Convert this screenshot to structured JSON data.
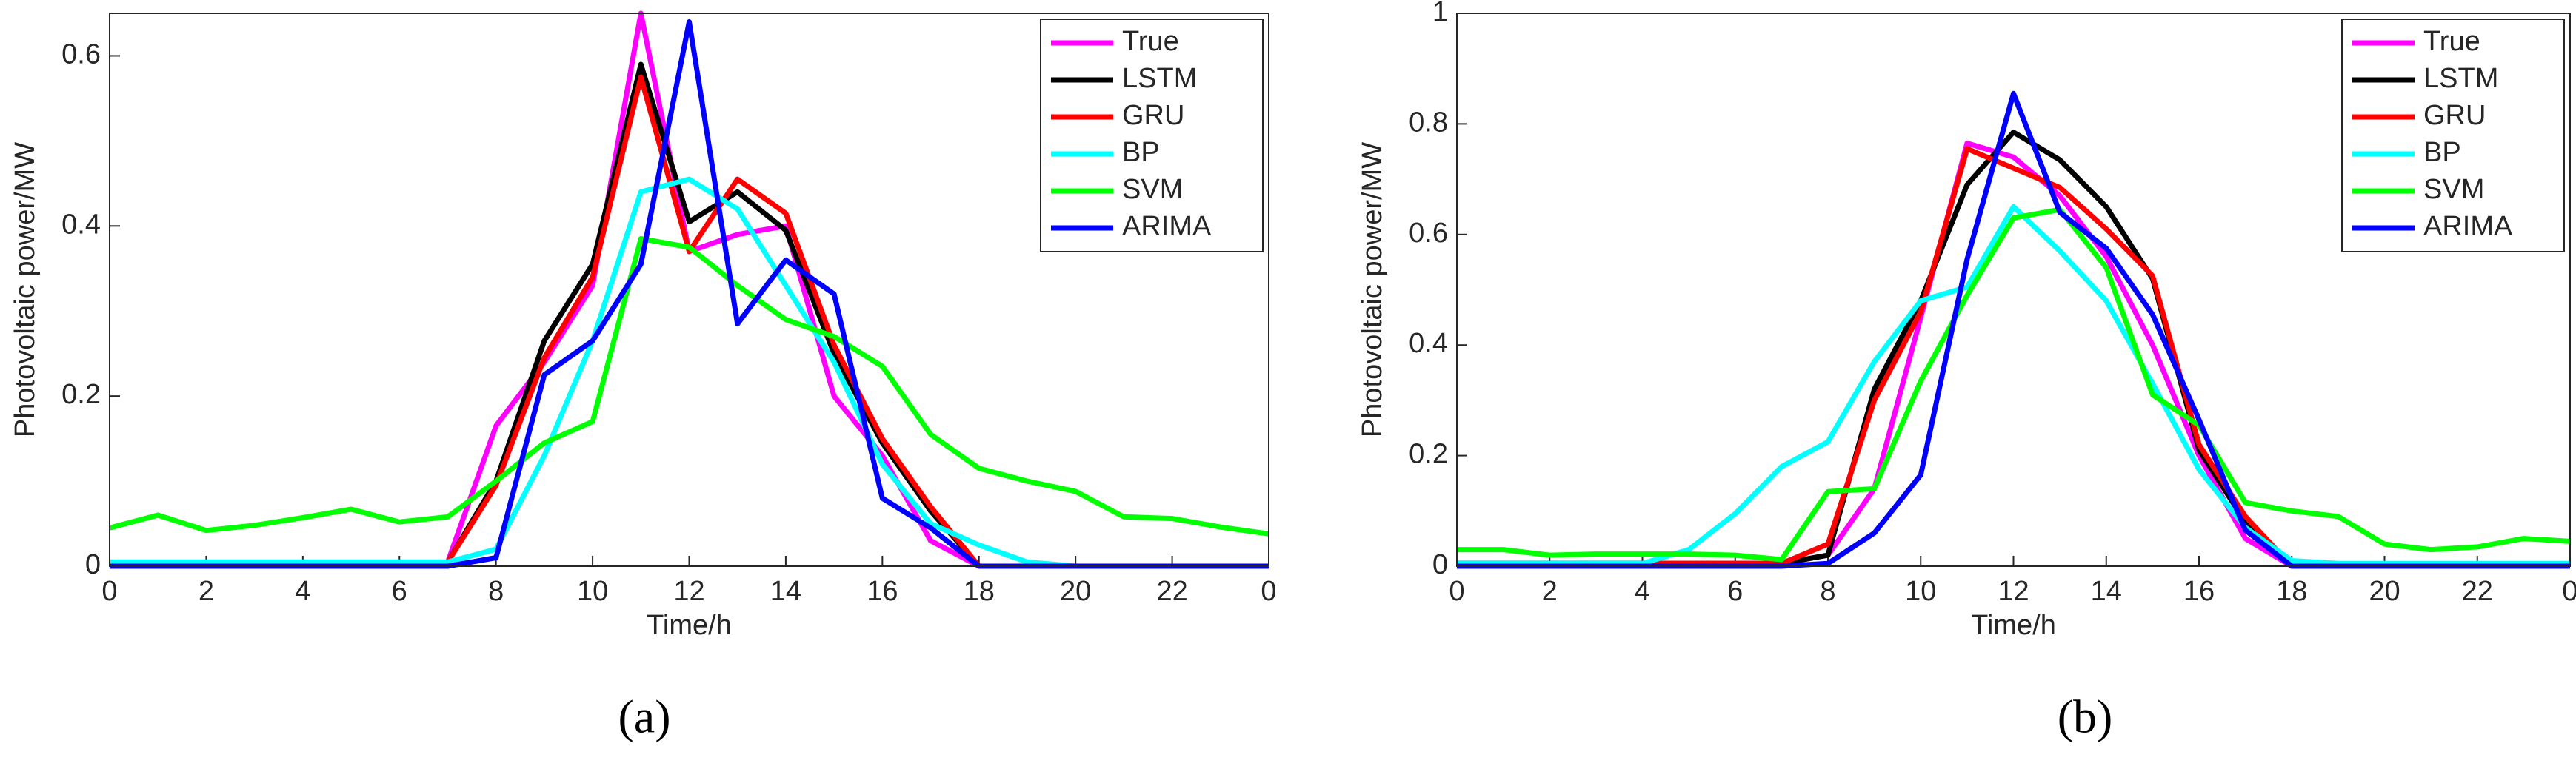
{
  "chart_data": [
    {
      "type": "line",
      "panel_label": "(a)",
      "x_label": "Time/h",
      "y_label": "Photovoltaic power/MW",
      "x": [
        0,
        1,
        2,
        3,
        4,
        5,
        6,
        7,
        8,
        9,
        10,
        11,
        12,
        13,
        14,
        15,
        16,
        17,
        18,
        19,
        20,
        21,
        22,
        23,
        24
      ],
      "xlim": [
        0,
        24
      ],
      "xticks": [
        0,
        2,
        4,
        6,
        8,
        10,
        12,
        14,
        16,
        18,
        20,
        22,
        {
          "value": 24,
          "label": "0"
        }
      ],
      "ylim": [
        0,
        0.65
      ],
      "yticks": [
        0,
        0.2,
        0.4,
        0.6
      ],
      "legend": "northeast",
      "series": [
        {
          "name": "True",
          "color": "#ff00ff",
          "values": [
            0,
            0,
            0,
            0,
            0,
            0,
            0,
            0.005,
            0.165,
            0.24,
            0.33,
            0.65,
            0.37,
            0.39,
            0.4,
            0.2,
            0.13,
            0.03,
            0,
            0,
            0,
            0,
            0,
            0,
            0
          ]
        },
        {
          "name": "LSTM",
          "color": "#000000",
          "values": [
            0,
            0,
            0,
            0,
            0,
            0,
            0,
            0.005,
            0.1,
            0.265,
            0.355,
            0.59,
            0.405,
            0.44,
            0.395,
            0.25,
            0.145,
            0.065,
            0,
            0,
            0,
            0,
            0,
            0,
            0
          ]
        },
        {
          "name": "GRU",
          "color": "#ff0000",
          "values": [
            0,
            0,
            0,
            0,
            0,
            0,
            0,
            0.005,
            0.095,
            0.245,
            0.34,
            0.575,
            0.37,
            0.455,
            0.415,
            0.26,
            0.15,
            0.07,
            0,
            0,
            0,
            0,
            0,
            0,
            0
          ]
        },
        {
          "name": "BP",
          "color": "#00ffff",
          "values": [
            0.005,
            0.005,
            0.005,
            0.005,
            0.005,
            0.005,
            0.005,
            0.005,
            0.02,
            0.13,
            0.265,
            0.44,
            0.455,
            0.42,
            0.33,
            0.24,
            0.12,
            0.05,
            0.025,
            0.005,
            0,
            0,
            0,
            0,
            0
          ]
        },
        {
          "name": "SVM",
          "color": "#00ff00",
          "values": [
            0.045,
            0.06,
            0.042,
            0.048,
            0.057,
            0.067,
            0.052,
            0.058,
            0.1,
            0.145,
            0.17,
            0.385,
            0.375,
            0.33,
            0.29,
            0.27,
            0.235,
            0.155,
            0.115,
            0.1,
            0.088,
            0.058,
            0.056,
            0.046,
            0.038
          ]
        },
        {
          "name": "ARIMA",
          "color": "#0000ff",
          "values": [
            0,
            0,
            0,
            0,
            0,
            0,
            0,
            0,
            0.01,
            0.225,
            0.265,
            0.355,
            0.64,
            0.285,
            0.36,
            0.32,
            0.08,
            0.045,
            0,
            0,
            0,
            0,
            0,
            0,
            0
          ]
        }
      ]
    },
    {
      "type": "line",
      "panel_label": "(b)",
      "x_label": "Time/h",
      "y_label": "Photovoltaic power/MW",
      "x": [
        0,
        1,
        2,
        3,
        4,
        5,
        6,
        7,
        8,
        9,
        10,
        11,
        12,
        13,
        14,
        15,
        16,
        17,
        18,
        19,
        20,
        21,
        22,
        23,
        24
      ],
      "xlim": [
        0,
        24
      ],
      "xticks": [
        0,
        2,
        4,
        6,
        8,
        10,
        12,
        14,
        16,
        18,
        20,
        22,
        {
          "value": 24,
          "label": "0"
        }
      ],
      "ylim": [
        0,
        1
      ],
      "yticks": [
        0,
        0.2,
        0.4,
        0.6,
        0.8,
        1
      ],
      "legend": "northeast",
      "series": [
        {
          "name": "True",
          "color": "#ff00ff",
          "values": [
            0.005,
            0.005,
            0.005,
            0.005,
            0.005,
            0.005,
            0.005,
            0.005,
            0.02,
            0.14,
            0.45,
            0.765,
            0.74,
            0.67,
            0.56,
            0.4,
            0.2,
            0.05,
            0,
            0,
            0,
            0,
            0,
            0,
            0
          ]
        },
        {
          "name": "LSTM",
          "color": "#000000",
          "values": [
            0.005,
            0.005,
            0.005,
            0.005,
            0.005,
            0.005,
            0.005,
            0.005,
            0.02,
            0.32,
            0.48,
            0.69,
            0.785,
            0.735,
            0.65,
            0.52,
            0.21,
            0.08,
            0,
            0,
            0,
            0,
            0,
            0,
            0
          ]
        },
        {
          "name": "GRU",
          "color": "#ff0000",
          "values": [
            0.005,
            0.005,
            0.005,
            0.005,
            0.005,
            0.005,
            0.005,
            0.005,
            0.04,
            0.3,
            0.46,
            0.755,
            0.72,
            0.685,
            0.61,
            0.525,
            0.22,
            0.09,
            0,
            0,
            0,
            0,
            0,
            0,
            0
          ]
        },
        {
          "name": "BP",
          "color": "#00ffff",
          "values": [
            0.005,
            0.005,
            0.005,
            0.005,
            0.005,
            0.03,
            0.095,
            0.18,
            0.225,
            0.37,
            0.48,
            0.505,
            0.65,
            0.57,
            0.48,
            0.33,
            0.175,
            0.07,
            0.01,
            0.005,
            0.005,
            0.005,
            0.005,
            0.005,
            0.005
          ]
        },
        {
          "name": "SVM",
          "color": "#00ff00",
          "values": [
            0.03,
            0.03,
            0.02,
            0.022,
            0.022,
            0.022,
            0.02,
            0.012,
            0.135,
            0.14,
            0.335,
            0.49,
            0.63,
            0.645,
            0.54,
            0.31,
            0.255,
            0.115,
            0.1,
            0.09,
            0.04,
            0.03,
            0.035,
            0.05,
            0.045
          ]
        },
        {
          "name": "ARIMA",
          "color": "#0000ff",
          "values": [
            0,
            0,
            0,
            0,
            0,
            0,
            0,
            0,
            0.005,
            0.06,
            0.165,
            0.555,
            0.855,
            0.64,
            0.575,
            0.455,
            0.265,
            0.065,
            0,
            0,
            0,
            0,
            0,
            0,
            0
          ]
        }
      ]
    }
  ]
}
